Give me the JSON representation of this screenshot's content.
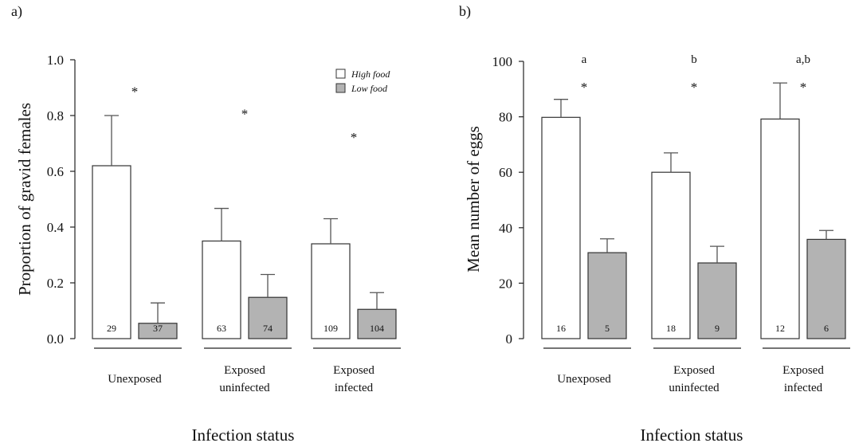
{
  "figure_xlabel": "Infection status",
  "legend": {
    "items": [
      {
        "label": "High food",
        "color": "#ffffff"
      },
      {
        "label": "Low food",
        "color": "#b3b3b3"
      }
    ]
  },
  "chart_data": [
    {
      "panel": "a)",
      "type": "bar",
      "ylabel": "Proportion of gravid females",
      "xlabel": "Infection status",
      "ylim": [
        0,
        1.0
      ],
      "yticks": [
        "0.0",
        "0.2",
        "0.4",
        "0.6",
        "0.8",
        "1.0"
      ],
      "ytick_values": [
        0,
        0.2,
        0.4,
        0.6,
        0.8,
        1.0
      ],
      "categories": [
        "Unexposed",
        "Exposed\nuninfected",
        "Exposed\ninfected"
      ],
      "series": [
        {
          "name": "High food",
          "color": "#ffffff",
          "values": [
            0.62,
            0.35,
            0.34
          ],
          "errors": [
            0.18,
            0.117,
            0.09
          ],
          "n": [
            "29",
            "63",
            "109"
          ]
        },
        {
          "name": "Low food",
          "color": "#b3b3b3",
          "values": [
            0.055,
            0.148,
            0.105
          ],
          "errors": [
            0.073,
            0.082,
            0.06
          ],
          "n": [
            "37",
            "74",
            "104"
          ]
        }
      ],
      "annotations": [
        {
          "category": 0,
          "text": "*",
          "y": 0.905
        },
        {
          "category": 1,
          "text": "*",
          "y": 0.825
        },
        {
          "category": 2,
          "text": "*",
          "y": 0.74
        }
      ],
      "show_legend": true
    },
    {
      "panel": "b)",
      "type": "bar",
      "ylabel": "Mean number of eggs",
      "xlabel": "Infection status",
      "ylim": [
        0,
        100
      ],
      "yticks": [
        "0",
        "20",
        "40",
        "60",
        "80",
        "100"
      ],
      "ytick_values": [
        0,
        20,
        40,
        60,
        80,
        100
      ],
      "categories": [
        "Unexposed",
        "Exposed\nuninfected",
        "Exposed\ninfected"
      ],
      "series": [
        {
          "name": "High food",
          "color": "#ffffff",
          "values": [
            79.8,
            60,
            79.2
          ],
          "errors": [
            6.5,
            7,
            13
          ],
          "n": [
            "16",
            "18",
            "12"
          ]
        },
        {
          "name": "Low food",
          "color": "#b3b3b3",
          "values": [
            31,
            27.3,
            35.8
          ],
          "errors": [
            5,
            6,
            3.2
          ],
          "n": [
            "5",
            "9",
            "6"
          ]
        }
      ],
      "letters": [
        "a",
        "b",
        "a,b"
      ],
      "annotations": [
        {
          "category": 0,
          "text": "*",
          "y": 92.5
        },
        {
          "category": 1,
          "text": "*",
          "y": 92.5
        },
        {
          "category": 2,
          "text": "*",
          "y": 92.5
        }
      ],
      "show_legend": false
    }
  ]
}
